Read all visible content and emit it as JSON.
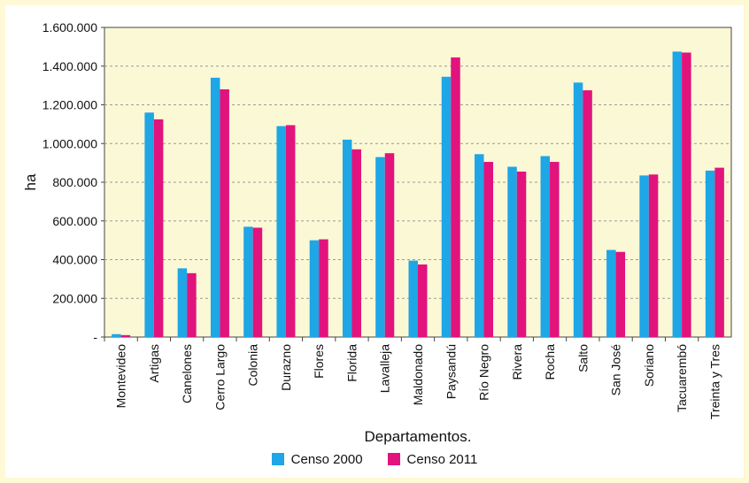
{
  "chart_data": {
    "type": "bar",
    "xlabel": "Departamentos.",
    "ylabel": "ha",
    "ylim": [
      0,
      1600000
    ],
    "ytick_labels": [
      "-",
      "200.000",
      "400.000",
      "600.000",
      "800.000",
      "1.000.000",
      "1.200.000",
      "1.400.000",
      "1.600.000"
    ],
    "ytick_values": [
      0,
      200000,
      400000,
      600000,
      800000,
      1000000,
      1200000,
      1400000,
      1600000
    ],
    "grid": true,
    "legend_position": "bottom",
    "categories": [
      "Montevideo",
      "Artigas",
      "Canelones",
      "Cerro Largo",
      "Colonia",
      "Durazno",
      "Flores",
      "Florida",
      "Lavalleja",
      "Maldonado",
      "Paysandú",
      "Río Negro",
      "Rivera",
      "Rocha",
      "Salto",
      "San José",
      "Soriano",
      "Tacuarembó",
      "Treinta y Tres"
    ],
    "series": [
      {
        "name": "Censo 2000",
        "color": "#1ea6e6",
        "values": [
          15000,
          1160000,
          355000,
          1340000,
          570000,
          1090000,
          500000,
          1020000,
          930000,
          395000,
          1345000,
          945000,
          880000,
          935000,
          1315000,
          450000,
          835000,
          1475000,
          860000
        ]
      },
      {
        "name": "Censo 2011",
        "color": "#e2137c",
        "values": [
          10000,
          1125000,
          330000,
          1280000,
          565000,
          1095000,
          505000,
          970000,
          950000,
          375000,
          1445000,
          905000,
          855000,
          905000,
          1275000,
          440000,
          840000,
          1470000,
          875000
        ]
      }
    ]
  },
  "colors": {
    "plot_background": "#fbf8d6",
    "page_background": "#fff9d6"
  }
}
